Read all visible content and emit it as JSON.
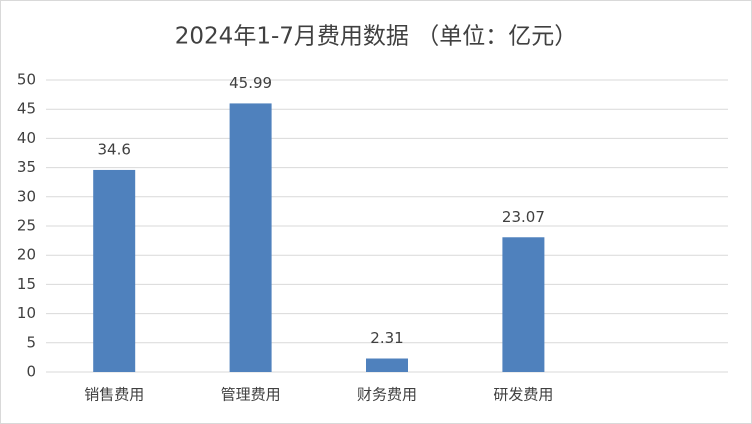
{
  "chart_data": {
    "type": "bar",
    "title": "2024年1-7月费用数据 （单位：亿元）",
    "categories": [
      "销售费用",
      "管理费用",
      "财务费用",
      "研发费用",
      null
    ],
    "values": [
      34.6,
      45.99,
      2.31,
      23.07,
      null
    ],
    "color": "#4f81bd",
    "ylim": [
      0,
      50
    ],
    "yticks": [
      0,
      5,
      10,
      15,
      20,
      25,
      30,
      35,
      40,
      45,
      50
    ],
    "grid": true
  }
}
